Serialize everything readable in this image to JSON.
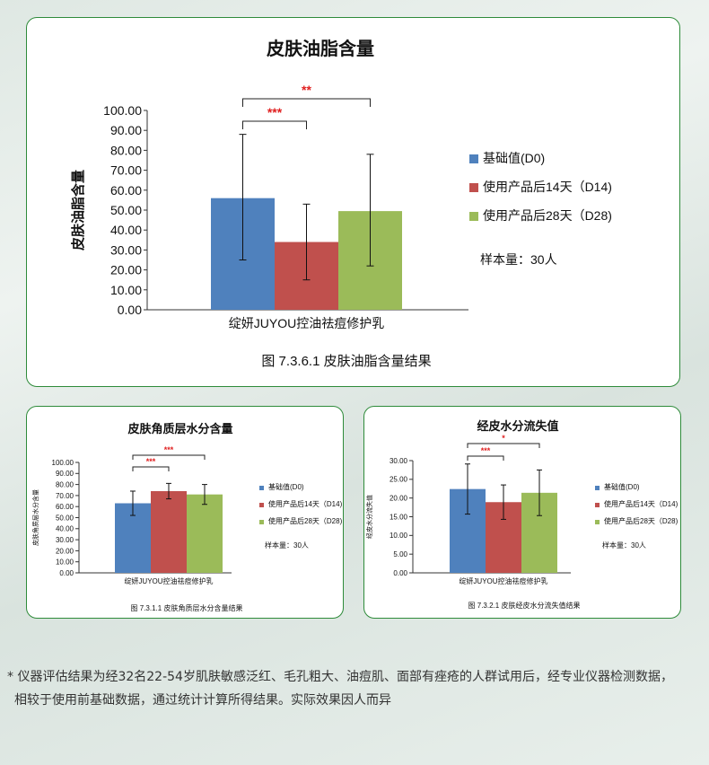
{
  "legend": {
    "baseline": "基础值(D0)",
    "d14": "使用产品后14天（D14)",
    "d28": "使用产品后28天（D28)"
  },
  "colors": {
    "baseline": "#4f81bd",
    "d14": "#c0504d",
    "d28": "#9bbb59",
    "sig": "#e02020",
    "border": "#2e8b3a"
  },
  "sample_size": "样本量：30人",
  "product_label": "绽妍JUYOU控油祛痘修护乳",
  "footnote": {
    "line1": "* 仪器评估结果为经32名22-54岁肌肤敏感泛红、毛孔粗大、油痘肌、面部有痤疮的人群试用后，经专业仪器检测数据，",
    "line2": "相较于使用前基础数据，通过统计计算所得结果。实际效果因人而异"
  },
  "chart_data": [
    {
      "type": "bar",
      "title": "皮肤油脂含量",
      "ylabel": "皮肤油脂含量",
      "caption": "图 7.3.6.1 皮肤油脂含量结果",
      "categories": [
        "绽妍JUYOU控油祛痘修护乳"
      ],
      "ylim": [
        0,
        100
      ],
      "ytick_step": 10,
      "ytick_decimals": 2,
      "series": [
        {
          "name": "基础值(D0)",
          "values": [
            56
          ],
          "error_low": [
            25
          ],
          "error_high": [
            88
          ]
        },
        {
          "name": "使用产品后14天（D14)",
          "values": [
            34
          ],
          "error_low": [
            15
          ],
          "error_high": [
            53
          ]
        },
        {
          "name": "使用产品后28天（D28)",
          "values": [
            49.5
          ],
          "error_low": [
            22
          ],
          "error_high": [
            78
          ]
        }
      ],
      "significance": [
        {
          "from": 0,
          "to": 1,
          "label": "***"
        },
        {
          "from": 0,
          "to": 2,
          "label": "**"
        }
      ],
      "grid": false,
      "legend": "right"
    },
    {
      "type": "bar",
      "title": "皮肤角质层水分含量",
      "ylabel": "皮肤角质层水分含量",
      "caption": "图 7.3.1.1 皮肤角质层水分含量结果",
      "categories": [
        "绽妍JUYOU控油祛痘修护乳"
      ],
      "ylim": [
        0,
        100
      ],
      "ytick_step": 10,
      "ytick_decimals": 2,
      "series": [
        {
          "name": "基础值(D0)",
          "values": [
            63
          ],
          "error_low": [
            52
          ],
          "error_high": [
            74
          ]
        },
        {
          "name": "使用产品后14天（D14)",
          "values": [
            74
          ],
          "error_low": [
            67
          ],
          "error_high": [
            81
          ]
        },
        {
          "name": "使用产品后28天（D28)",
          "values": [
            71
          ],
          "error_low": [
            62
          ],
          "error_high": [
            80
          ]
        }
      ],
      "significance": [
        {
          "from": 0,
          "to": 1,
          "label": "***"
        },
        {
          "from": 0,
          "to": 2,
          "label": "***"
        }
      ],
      "grid": false,
      "legend": "right"
    },
    {
      "type": "bar",
      "title": "经皮水分流失值",
      "ylabel": "经皮水分流失值",
      "caption": "图 7.3.2.1 皮肤经皮水分流失值结果",
      "categories": [
        "绽妍JUYOU控油祛痘修护乳"
      ],
      "ylim": [
        0,
        30
      ],
      "ytick_step": 5,
      "ytick_decimals": 2,
      "series": [
        {
          "name": "基础值(D0)",
          "values": [
            22.4
          ],
          "error_low": [
            15.7
          ],
          "error_high": [
            29.1
          ]
        },
        {
          "name": "使用产品后14天（D14)",
          "values": [
            18.9
          ],
          "error_low": [
            14.3
          ],
          "error_high": [
            23.5
          ]
        },
        {
          "name": "使用产品后28天（D28)",
          "values": [
            21.4
          ],
          "error_low": [
            15.3
          ],
          "error_high": [
            27.5
          ]
        }
      ],
      "significance": [
        {
          "from": 0,
          "to": 1,
          "label": "***"
        },
        {
          "from": 0,
          "to": 2,
          "label": "*"
        }
      ],
      "grid": false,
      "legend": "right"
    }
  ]
}
